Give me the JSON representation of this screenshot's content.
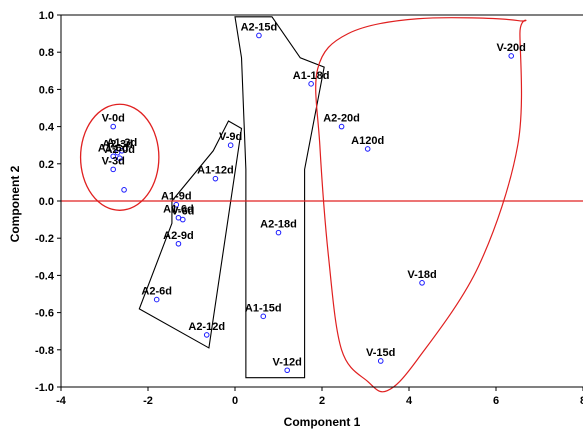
{
  "chart_data": {
    "type": "scatter",
    "title": "",
    "xlabel": "Component 1",
    "ylabel": "Component 2",
    "xlim": [
      -4,
      8
    ],
    "ylim": [
      -1.0,
      1.0
    ],
    "x_ticks": [
      -4,
      -2,
      0,
      2,
      4,
      6,
      8
    ],
    "x_tick_labels": [
      "-4",
      "-2",
      "0",
      "2",
      "4",
      "6",
      "8"
    ],
    "y_ticks": [
      1.0,
      0.8,
      0.6,
      0.4,
      0.2,
      0.0,
      -0.2,
      -0.4,
      -0.6,
      -0.8,
      -1.0
    ],
    "y_tick_labels": [
      "1.0",
      "0.8",
      "0.6",
      "0.4",
      "0.2",
      "0.0",
      "-0.2",
      "-0.4",
      "-0.6",
      "-0.8",
      "-1.0"
    ],
    "grid": false,
    "reference_line_y": 0.0,
    "marker_color": "#1a1aff",
    "line_color": "#e02020",
    "group_outline_colors": [
      "#e02020",
      "#000000",
      "#000000",
      "#e02020"
    ],
    "points": [
      {
        "label": "V-0d",
        "x": -2.8,
        "y": 0.4
      },
      {
        "label": "A1-3d",
        "x": -2.6,
        "y": 0.27
      },
      {
        "label": "A2-3d",
        "x": -2.7,
        "y": 0.26
      },
      {
        "label": "A1-6d",
        "x": -2.8,
        "y": 0.24
      },
      {
        "label": "A2-0d",
        "x": -2.65,
        "y": 0.23
      },
      {
        "label": "V-3d",
        "x": -2.8,
        "y": 0.17
      },
      {
        "label": "",
        "x": -2.55,
        "y": 0.06
      },
      {
        "label": "V-9d",
        "x": -0.1,
        "y": 0.3
      },
      {
        "label": "A1-12d",
        "x": -0.45,
        "y": 0.12
      },
      {
        "label": "A1-9d",
        "x": -1.35,
        "y": -0.02
      },
      {
        "label": "A1-6d",
        "x": -1.3,
        "y": -0.09
      },
      {
        "label": "V-6d",
        "x": -1.2,
        "y": -0.1
      },
      {
        "label": "A2-9d",
        "x": -1.3,
        "y": -0.23
      },
      {
        "label": "A2-6d",
        "x": -1.8,
        "y": -0.53
      },
      {
        "label": "A2-12d",
        "x": -0.65,
        "y": -0.72
      },
      {
        "label": "A2-15d",
        "x": 0.55,
        "y": 0.89
      },
      {
        "label": "A1-18d",
        "x": 1.75,
        "y": 0.63
      },
      {
        "label": "A2-18d",
        "x": 1.0,
        "y": -0.17
      },
      {
        "label": "A1-15d",
        "x": 0.65,
        "y": -0.62
      },
      {
        "label": "V-12d",
        "x": 1.2,
        "y": -0.91
      },
      {
        "label": "V-20d",
        "x": 6.35,
        "y": 0.78
      },
      {
        "label": "A2-20d",
        "x": 2.45,
        "y": 0.4
      },
      {
        "label": "A120d",
        "x": 3.05,
        "y": 0.28
      },
      {
        "label": "V-18d",
        "x": 4.3,
        "y": -0.44
      },
      {
        "label": "V-15d",
        "x": 3.35,
        "y": -0.86
      }
    ]
  }
}
